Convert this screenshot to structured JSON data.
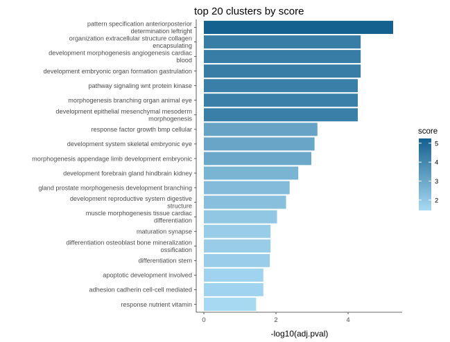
{
  "chart_data": {
    "type": "bar",
    "orientation": "horizontal",
    "title": "top 20 clusters by score",
    "xlabel": "-log10(adj.pval)",
    "ylabel": "",
    "xlim": [
      -0.1,
      5.45
    ],
    "xticks": [
      0,
      2,
      4
    ],
    "grid": false,
    "legend_position": "right",
    "legend": {
      "title": "score",
      "ticks": [
        2,
        3,
        4,
        5
      ],
      "range": [
        1.45,
        5.25
      ],
      "color_low": "#a8d9f2",
      "color_high": "#14608e"
    },
    "categories": [
      [
        "pattern specification anteriorposterior",
        "determination leftright"
      ],
      [
        "organization extracellular structure collagen",
        "encapsulating"
      ],
      [
        "development morphogenesis angiogenesis cardiac",
        "blood"
      ],
      [
        "development embryonic organ formation gastrulation"
      ],
      [
        "pathway signaling wnt protein kinase"
      ],
      [
        "morphogenesis branching organ animal eye"
      ],
      [
        "development epithelial mesenchymal mesoderm",
        "morphogenesis"
      ],
      [
        "response factor growth bmp cellular"
      ],
      [
        "development system skeletal embryonic eye"
      ],
      [
        "morphogenesis appendage limb development embryonic"
      ],
      [
        "development forebrain gland hindbrain kidney"
      ],
      [
        "gland prostate morphogenesis development branching"
      ],
      [
        "development reproductive system digestive",
        "structure"
      ],
      [
        "muscle morphogenesis tissue cardiac",
        "differentiation"
      ],
      [
        "maturation synapse"
      ],
      [
        "differentiation osteoblast bone mineralization",
        "ossification"
      ],
      [
        "differentiation stem"
      ],
      [
        "apoptotic development involved"
      ],
      [
        "adhesion cadherin cell-cell mediated"
      ],
      [
        "response nutrient vitamin"
      ]
    ],
    "values": [
      5.25,
      4.35,
      4.35,
      4.35,
      4.27,
      4.27,
      4.27,
      3.15,
      3.07,
      2.98,
      2.62,
      2.38,
      2.28,
      2.03,
      1.85,
      1.85,
      1.83,
      1.65,
      1.65,
      1.45
    ],
    "score": [
      5.25,
      4.35,
      4.35,
      4.35,
      4.27,
      4.27,
      4.27,
      3.15,
      3.07,
      2.98,
      2.62,
      2.38,
      2.28,
      2.03,
      1.85,
      1.85,
      1.83,
      1.65,
      1.65,
      1.45
    ]
  }
}
